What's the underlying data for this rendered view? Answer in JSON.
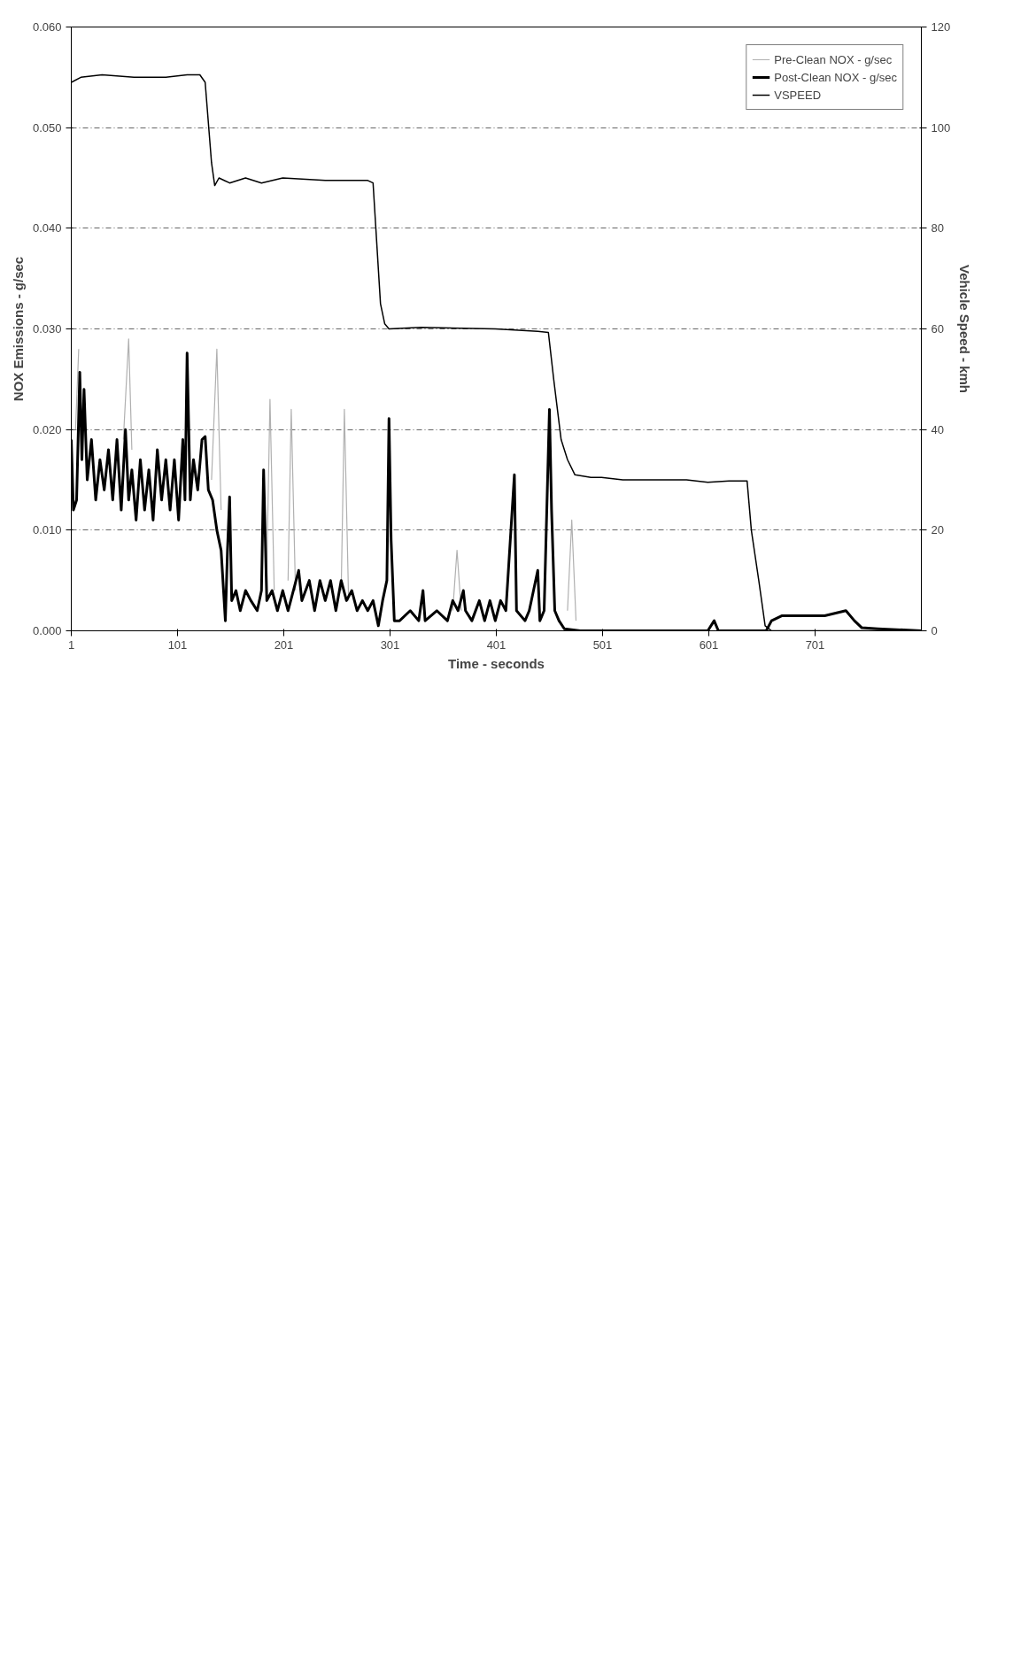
{
  "chart_data": {
    "type": "line",
    "xlabel": "Time - seconds",
    "ylabel": "NOX Emissions - g/sec",
    "y2label": "Vehicle Speed - kmh",
    "xlim": [
      1,
      801
    ],
    "xticks": [
      1,
      101,
      201,
      301,
      401,
      501,
      601,
      701
    ],
    "ylim": [
      0,
      0.06
    ],
    "yticks": [
      {
        "value": 0,
        "label": "0.000"
      },
      {
        "value": 0.01,
        "label": "0.010"
      },
      {
        "value": 0.02,
        "label": "0.020"
      },
      {
        "value": 0.03,
        "label": "0.030"
      },
      {
        "value": 0.04,
        "label": "0.040"
      },
      {
        "value": 0.05,
        "label": "0.050"
      },
      {
        "value": 0.06,
        "label": "0.060"
      }
    ],
    "y2lim": [
      0,
      120
    ],
    "y2ticks": [
      0,
      20,
      40,
      60,
      80,
      100,
      120
    ],
    "grid": "y",
    "legend": "top right",
    "line_style": "solid",
    "marker": "none",
    "series": [
      {
        "name": "Pre-Clean NOX - g/sec",
        "color": "#b0b0b0",
        "x": [
          5,
          8,
          null,
          50,
          55,
          58,
          null,
          133,
          138,
          142,
          null,
          185,
          188,
          192,
          null,
          205,
          208,
          212,
          null,
          255,
          258,
          262,
          null,
          360,
          364,
          368,
          null,
          468,
          472,
          476
        ],
        "values": [
          0.02,
          0.028,
          null,
          0.019,
          0.029,
          0.018,
          null,
          0.015,
          0.028,
          0.012,
          null,
          0.006,
          0.023,
          0.004,
          null,
          0.005,
          0.022,
          0.004,
          null,
          0.004,
          0.022,
          0.003,
          null,
          0.002,
          0.008,
          0.002,
          null,
          0.002,
          0.011,
          0.001
        ]
      },
      {
        "name": "Post-Clean NOX - g/sec",
        "color": "#000000",
        "x": [
          1,
          3,
          6,
          9,
          11,
          13,
          16,
          20,
          24,
          28,
          32,
          36,
          40,
          44,
          48,
          52,
          55,
          58,
          62,
          66,
          70,
          74,
          78,
          82,
          86,
          90,
          94,
          98,
          102,
          106,
          108,
          110,
          113,
          116,
          120,
          124,
          127,
          130,
          134,
          138,
          142,
          146,
          148,
          150,
          152,
          156,
          160,
          165,
          170,
          176,
          180,
          182,
          185,
          190,
          195,
          200,
          205,
          210,
          215,
          218,
          225,
          230,
          235,
          240,
          245,
          250,
          255,
          260,
          265,
          270,
          275,
          280,
          285,
          290,
          294,
          298,
          300,
          302,
          305,
          310,
          320,
          328,
          332,
          334,
          345,
          355,
          360,
          365,
          370,
          372,
          378,
          385,
          390,
          395,
          400,
          405,
          410,
          418,
          420,
          428,
          432,
          440,
          442,
          446,
          451,
          453,
          456,
          460,
          465,
          480,
          600,
          606,
          610,
          655,
          660,
          670,
          690,
          710,
          730,
          738,
          745,
          760,
          801
        ],
        "values": [
          0.019,
          0.012,
          0.013,
          0.0257,
          0.017,
          0.024,
          0.015,
          0.019,
          0.013,
          0.017,
          0.014,
          0.018,
          0.013,
          0.019,
          0.012,
          0.02,
          0.013,
          0.016,
          0.011,
          0.017,
          0.012,
          0.016,
          0.011,
          0.018,
          0.013,
          0.017,
          0.012,
          0.017,
          0.011,
          0.019,
          0.013,
          0.0276,
          0.013,
          0.017,
          0.014,
          0.019,
          0.0193,
          0.014,
          0.013,
          0.01,
          0.008,
          0.001,
          0.008,
          0.0133,
          0.003,
          0.004,
          0.002,
          0.004,
          0.003,
          0.002,
          0.004,
          0.016,
          0.003,
          0.004,
          0.002,
          0.004,
          0.002,
          0.004,
          0.006,
          0.003,
          0.005,
          0.002,
          0.005,
          0.003,
          0.005,
          0.002,
          0.005,
          0.003,
          0.004,
          0.002,
          0.003,
          0.002,
          0.003,
          0.0005,
          0.003,
          0.005,
          0.0211,
          0.009,
          0.001,
          0.001,
          0.002,
          0.001,
          0.004,
          0.001,
          0.002,
          0.001,
          0.003,
          0.002,
          0.004,
          0.002,
          0.001,
          0.003,
          0.001,
          0.003,
          0.001,
          0.003,
          0.002,
          0.0155,
          0.002,
          0.001,
          0.002,
          0.006,
          0.001,
          0.002,
          0.022,
          0.012,
          0.002,
          0.001,
          0.0002,
          0,
          0,
          0.001,
          0,
          0,
          0.001,
          0.0015,
          0.0015,
          0.0015,
          0.002,
          0.001,
          0.0003,
          0.0002,
          0
        ]
      },
      {
        "name": "VSPEED",
        "color": "#000000",
        "axis": "y2",
        "x": [
          1,
          10,
          30,
          60,
          90,
          110,
          122,
          127,
          133,
          136,
          140,
          150,
          165,
          180,
          200,
          240,
          280,
          285,
          292,
          296,
          300,
          330,
          400,
          440,
          450,
          455,
          462,
          468,
          475,
          490,
          500,
          520,
          560,
          580,
          600,
          620,
          637,
          641,
          648,
          654,
          660,
          801
        ],
        "values": [
          109,
          110,
          110.5,
          110,
          110,
          110.5,
          110.5,
          109,
          93,
          88.5,
          90,
          89,
          90,
          89,
          90,
          89.5,
          89.5,
          89,
          65,
          61,
          60,
          60.3,
          60,
          59.5,
          59.3,
          50,
          38,
          34,
          31,
          30.5,
          30.5,
          30,
          30,
          30,
          29.5,
          29.8,
          29.8,
          20,
          10,
          1,
          0,
          0
        ]
      }
    ]
  }
}
